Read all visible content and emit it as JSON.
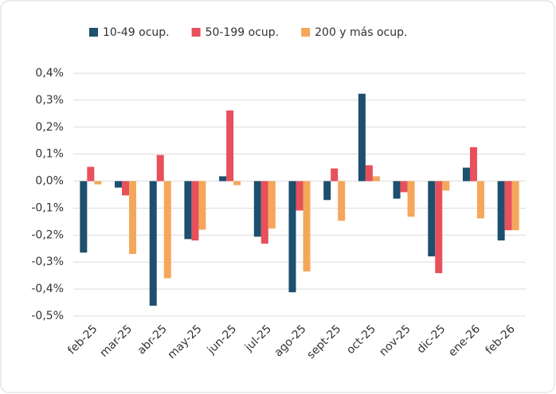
{
  "chart_data": {
    "type": "bar",
    "categories": [
      "feb-25",
      "mar-25",
      "abr-25",
      "may-25",
      "jun-25",
      "jul-25",
      "ago-25",
      "sept-25",
      "oct-25",
      "nov-25",
      "dic-25",
      "ene-26",
      "feb-26"
    ],
    "series": [
      {
        "name": "10-49 ocup.",
        "color": "#1d4f6e",
        "values": [
          -0.265,
          -0.024,
          -0.462,
          -0.215,
          0.018,
          -0.206,
          -0.412,
          -0.07,
          0.324,
          -0.065,
          -0.279,
          0.05,
          -0.22
        ]
      },
      {
        "name": "50-199 ocup.",
        "color": "#e8505b",
        "values": [
          0.053,
          -0.053,
          0.097,
          -0.22,
          0.262,
          -0.232,
          -0.109,
          0.047,
          0.059,
          -0.041,
          -0.341,
          0.126,
          -0.182
        ]
      },
      {
        "name": "200 y más ocup.",
        "color": "#f4a75a",
        "values": [
          -0.012,
          -0.27,
          -0.36,
          -0.18,
          -0.015,
          -0.176,
          -0.335,
          -0.147,
          0.018,
          -0.132,
          -0.035,
          -0.138,
          -0.182
        ]
      }
    ],
    "ylim": [
      -0.5,
      0.4
    ],
    "yticks": [
      {
        "value": -0.5,
        "label": "-0,5%"
      },
      {
        "value": -0.4,
        "label": "-0,4%"
      },
      {
        "value": -0.3,
        "label": "-0,3%"
      },
      {
        "value": -0.2,
        "label": "-0,2%"
      },
      {
        "value": -0.1,
        "label": "-0,1%"
      },
      {
        "value": 0,
        "label": "0,0%"
      },
      {
        "value": 0.1,
        "label": "0,1%"
      },
      {
        "value": 0.2,
        "label": "0,2%"
      },
      {
        "value": 0.3,
        "label": "0,3%"
      },
      {
        "value": 0.4,
        "label": "0,4%"
      }
    ],
    "grid": true,
    "legend": "top"
  }
}
